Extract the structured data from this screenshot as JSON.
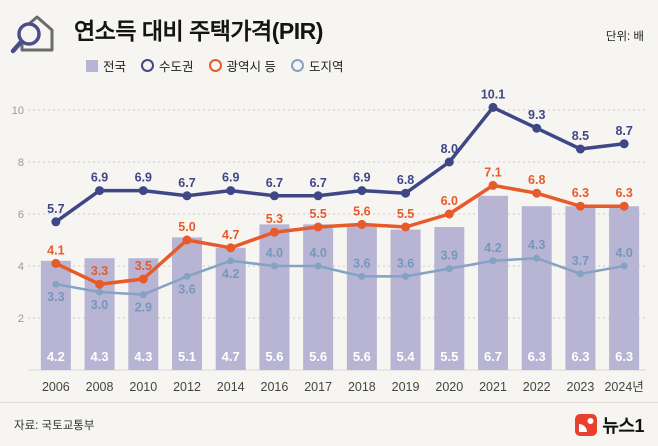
{
  "header": {
    "title": "연소득 대비 주택가격(PIR)",
    "unit": "단위: 배"
  },
  "footer": {
    "source": "자료: 국토교통부",
    "brand": "뉴스1"
  },
  "colors": {
    "bar": "#b7b5d3",
    "capital": "#3f4787",
    "metro": "#e75b2b",
    "province": "#84a2c4",
    "province_label": "#7597bc",
    "grid": "#cccccc",
    "axis": "#d8d8d8",
    "bar_label": "#ffffff",
    "x_label": "#444444",
    "y_label": "#999999",
    "brand_red": "#e8402c"
  },
  "chart_data": {
    "type": "bar+line",
    "title": "연소득 대비 주택가격(PIR)",
    "unit": "배",
    "categories": [
      "2006",
      "2008",
      "2010",
      "2012",
      "2014",
      "2016",
      "2017",
      "2018",
      "2019",
      "2020",
      "2021",
      "2022",
      "2023",
      "2024년"
    ],
    "series": [
      {
        "key": "nationwide",
        "name": "전국",
        "type": "bar",
        "color_key": "bar",
        "values": [
          4.2,
          4.3,
          4.3,
          5.1,
          4.7,
          5.6,
          5.6,
          5.6,
          5.4,
          5.5,
          6.7,
          6.3,
          6.3,
          6.3
        ]
      },
      {
        "key": "capital",
        "name": "수도권",
        "type": "line",
        "color_key": "capital",
        "values": [
          5.7,
          6.9,
          6.9,
          6.7,
          6.9,
          6.7,
          6.7,
          6.9,
          6.8,
          8.0,
          10.1,
          9.3,
          8.5,
          8.7
        ]
      },
      {
        "key": "metro",
        "name": "광역시 등",
        "type": "line",
        "color_key": "metro",
        "values": [
          4.1,
          3.3,
          3.5,
          5.0,
          4.7,
          5.3,
          5.5,
          5.6,
          5.5,
          6.0,
          7.1,
          6.8,
          6.3,
          6.3
        ]
      },
      {
        "key": "province",
        "name": "도지역",
        "type": "line",
        "color_key": "province",
        "values": [
          3.3,
          3.0,
          2.9,
          3.6,
          4.2,
          4.0,
          4.0,
          3.6,
          3.6,
          3.9,
          4.2,
          4.3,
          3.7,
          4.0
        ]
      }
    ],
    "y_ticks": [
      2,
      4,
      6,
      8,
      10
    ],
    "ylim": [
      0,
      11
    ],
    "grid": true,
    "legend_position": "top-left"
  }
}
